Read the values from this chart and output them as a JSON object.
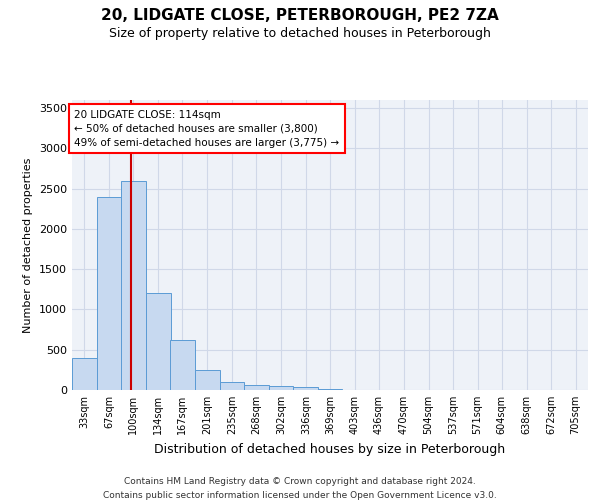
{
  "title": "20, LIDGATE CLOSE, PETERBOROUGH, PE2 7ZA",
  "subtitle": "Size of property relative to detached houses in Peterborough",
  "xlabel": "Distribution of detached houses by size in Peterborough",
  "ylabel": "Number of detached properties",
  "footnote1": "Contains HM Land Registry data © Crown copyright and database right 2024.",
  "footnote2": "Contains public sector information licensed under the Open Government Licence v3.0.",
  "annotation_title": "20 LIDGATE CLOSE: 114sqm",
  "annotation_line1": "← 50% of detached houses are smaller (3,800)",
  "annotation_line2": "49% of semi-detached houses are larger (3,775) →",
  "bar_color": "#c7d9f0",
  "bar_edge_color": "#5b9bd5",
  "grid_color": "#d0d8e8",
  "bg_color": "#eef2f8",
  "red_line_color": "#cc0000",
  "property_sqm": 114,
  "categories": [
    "33sqm",
    "67sqm",
    "100sqm",
    "134sqm",
    "167sqm",
    "201sqm",
    "235sqm",
    "268sqm",
    "302sqm",
    "336sqm",
    "369sqm",
    "403sqm",
    "436sqm",
    "470sqm",
    "504sqm",
    "537sqm",
    "571sqm",
    "604sqm",
    "638sqm",
    "672sqm",
    "705sqm"
  ],
  "bin_edges": [
    33,
    67,
    100,
    134,
    167,
    201,
    235,
    268,
    302,
    336,
    369,
    403,
    436,
    470,
    504,
    537,
    571,
    604,
    638,
    672,
    705
  ],
  "values": [
    400,
    2400,
    2600,
    1200,
    620,
    250,
    100,
    60,
    50,
    40,
    10,
    5,
    3,
    2,
    1,
    1,
    0,
    0,
    0,
    0,
    0
  ],
  "ylim": [
    0,
    3600
  ],
  "yticks": [
    0,
    500,
    1000,
    1500,
    2000,
    2500,
    3000,
    3500
  ]
}
